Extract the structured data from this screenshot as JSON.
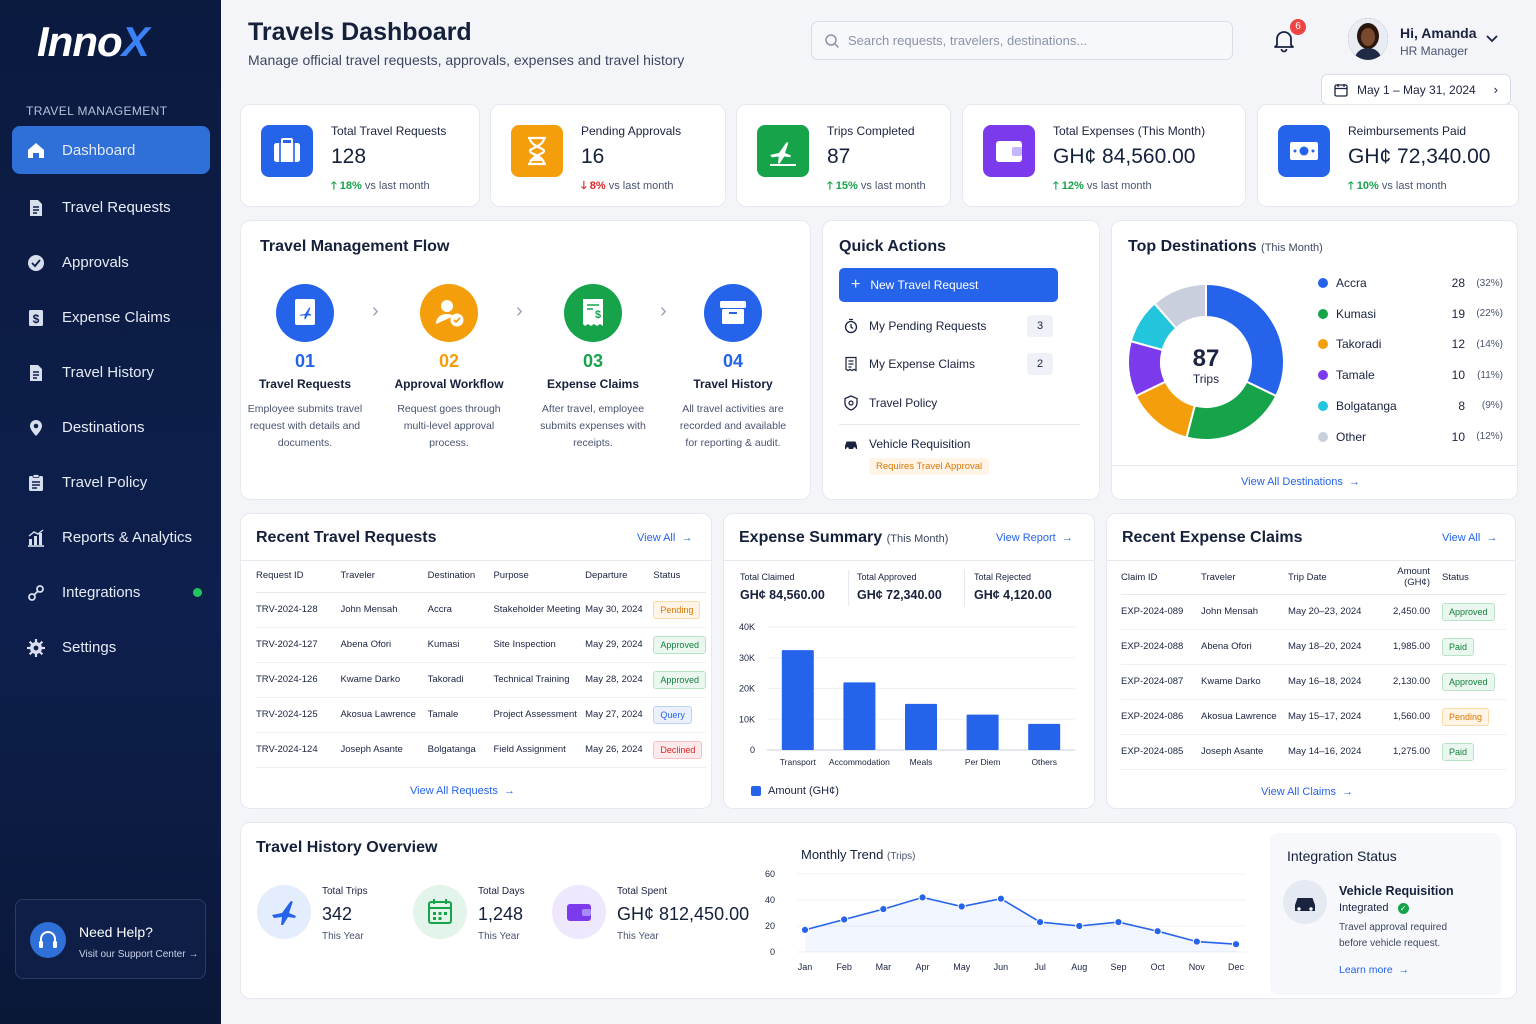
{
  "sidebar": {
    "logo_main": "Inno",
    "logo_x": "X",
    "section": "TRAVEL MANAGEMENT",
    "items": [
      {
        "label": "Dashboard",
        "icon": "home-icon"
      },
      {
        "label": "Travel Requests",
        "icon": "document-icon"
      },
      {
        "label": "Approvals",
        "icon": "check-badge-icon"
      },
      {
        "label": "Expense Claims",
        "icon": "dollar-doc-icon"
      },
      {
        "label": "Travel History",
        "icon": "history-doc-icon"
      },
      {
        "label": "Destinations",
        "icon": "map-pin-icon"
      },
      {
        "label": "Travel Policy",
        "icon": "clipboard-icon"
      },
      {
        "label": "Reports & Analytics",
        "icon": "analytics-icon"
      },
      {
        "label": "Integrations",
        "icon": "link-icon"
      },
      {
        "label": "Settings",
        "icon": "gear-icon"
      }
    ],
    "help_title": "Need Help?",
    "help_sub": "Visit our Support Center →"
  },
  "header": {
    "title": "Travels Dashboard",
    "subtitle": "Manage official travel requests, approvals, expenses and travel history",
    "search_placeholder": "Search requests, travelers, destinations...",
    "notification_count": "6",
    "user_name": "Hi, Amanda",
    "user_role": "HR Manager",
    "date_range": "May 1 – May 31, 2024"
  },
  "stats": [
    {
      "label": "Total Travel Requests",
      "value": "128",
      "delta": "18%",
      "delta_text": "vs last month",
      "dir": "up",
      "color": "#2563eb"
    },
    {
      "label": "Pending Approvals",
      "value": "16",
      "delta": "8%",
      "delta_text": "vs last month",
      "dir": "down",
      "color": "#f59e0b"
    },
    {
      "label": "Trips Completed",
      "value": "87",
      "delta": "15%",
      "delta_text": "vs last month",
      "dir": "up",
      "color": "#16a34a"
    },
    {
      "label": "Total Expenses (This Month)",
      "value": "GH¢  84,560.00",
      "delta": "12%",
      "delta_text": "vs last month",
      "dir": "up",
      "color": "#7c3aed"
    },
    {
      "label": "Reimbursements Paid",
      "value": "GH¢ 72,340.00",
      "delta": "10%",
      "delta_text": "vs last month",
      "dir": "up",
      "color": "#2563eb"
    }
  ],
  "flow": {
    "title": "Travel Management Flow",
    "steps": [
      {
        "num": "01",
        "name": "Travel Requests",
        "desc": "Employee submits travel request with details and documents.",
        "color": "#2563eb"
      },
      {
        "num": "02",
        "name": "Approval Workflow",
        "desc": "Request goes through multi-level approval process.",
        "color": "#f59e0b"
      },
      {
        "num": "03",
        "name": "Expense Claims",
        "desc": "After travel, employee submits expenses with receipts.",
        "color": "#16a34a"
      },
      {
        "num": "04",
        "name": "Travel History",
        "desc": "All travel activities are recorded and available for reporting & audit.",
        "color": "#2563eb"
      }
    ]
  },
  "quick": {
    "title": "Quick Actions",
    "new_request": "New Travel Request",
    "pending": "My Pending Requests",
    "pending_count": "3",
    "expense": "My Expense Claims",
    "expense_count": "2",
    "policy": "Travel Policy",
    "vehicle": "Vehicle Requisition",
    "vehicle_note": "Requires Travel Approval"
  },
  "destinations": {
    "title": "Top Destinations",
    "title_small": "(This Month)",
    "center_value": "87",
    "center_label": "Trips",
    "items": [
      {
        "name": "Accra",
        "value": "28",
        "pct": "(32%)",
        "color": "#2563eb"
      },
      {
        "name": "Kumasi",
        "value": "19",
        "pct": "(22%)",
        "color": "#16a34a"
      },
      {
        "name": "Takoradi",
        "value": "12",
        "pct": "(14%)",
        "color": "#f59e0b"
      },
      {
        "name": "Tamale",
        "value": "10",
        "pct": "(11%)",
        "color": "#7c3aed"
      },
      {
        "name": "Bolgatanga",
        "value": "8",
        "pct": "(9%)",
        "color": "#22c5dc"
      },
      {
        "name": "Other",
        "value": "10",
        "pct": "(12%)",
        "color": "#c9cfdc"
      }
    ],
    "link": "View All Destinations"
  },
  "recent_requests": {
    "title": "Recent Travel Requests",
    "view_all": "View All",
    "headers": [
      "Request ID",
      "Traveler",
      "Destination",
      "Purpose",
      "Departure",
      "Status"
    ],
    "rows": [
      [
        "TRV-2024-128",
        "John Mensah",
        "Accra",
        "Stakeholder Meeting",
        "May 30, 2024",
        "Pending"
      ],
      [
        "TRV-2024-127",
        "Abena Ofori",
        "Kumasi",
        "Site Inspection",
        "May 29, 2024",
        "Approved"
      ],
      [
        "TRV-2024-126",
        "Kwame Darko",
        "Takoradi",
        "Technical Training",
        "May 28, 2024",
        "Approved"
      ],
      [
        "TRV-2024-125",
        "Akosua Lawrence",
        "Tamale",
        "Project Assessment",
        "May 27, 2024",
        "Query"
      ],
      [
        "TRV-2024-124",
        "Joseph Asante",
        "Bolgatanga",
        "Field Assignment",
        "May 26, 2024",
        "Declined"
      ]
    ],
    "footer": "View All Requests"
  },
  "expense_summary": {
    "title": "Expense Summary",
    "title_small": "(This Month)",
    "link": "View Report",
    "totals": [
      {
        "label": "Total Claimed",
        "value": "GH¢ 84,560.00"
      },
      {
        "label": "Total Approved",
        "value": "GH¢ 72,340.00"
      },
      {
        "label": "Total Rejected",
        "value": "GH¢ 4,120.00"
      }
    ],
    "legend": "Amount (GH¢)"
  },
  "chart_data": [
    {
      "type": "bar",
      "categories": [
        "Transport",
        "Accommodation",
        "Meals",
        "Per Diem",
        "Others"
      ],
      "values": [
        32500,
        22000,
        15000,
        11500,
        8500
      ],
      "ylim": [
        0,
        40000
      ],
      "yticks": [
        "0",
        "10K",
        "20K",
        "30K",
        "40K"
      ],
      "series": [
        {
          "name": "Amount (GH¢)",
          "values": [
            32500,
            22000,
            15000,
            11500,
            8500
          ]
        }
      ],
      "color": "#2563eb"
    },
    {
      "type": "line",
      "title": "Monthly Trend",
      "title_small": "(Trips)",
      "categories": [
        "Jan",
        "Feb",
        "Mar",
        "Apr",
        "May",
        "Jun",
        "Jul",
        "Aug",
        "Sep",
        "Oct",
        "Nov",
        "Dec"
      ],
      "values": [
        17,
        25,
        33,
        42,
        35,
        41,
        23,
        20,
        23,
        16,
        8,
        6
      ],
      "ylim": [
        0,
        60
      ],
      "yticks": [
        "0",
        "20",
        "40",
        "60"
      ],
      "color": "#2563eb"
    },
    {
      "type": "pie",
      "categories": [
        "Accra",
        "Kumasi",
        "Takoradi",
        "Tamale",
        "Bolgatanga",
        "Other"
      ],
      "values": [
        28,
        19,
        12,
        10,
        8,
        10
      ]
    }
  ],
  "recent_claims": {
    "title": "Recent Expense Claims",
    "view_all": "View All",
    "headers": [
      "Claim ID",
      "Traveler",
      "Trip Date",
      "Amount (GH¢)",
      "Status"
    ],
    "rows": [
      [
        "EXP-2024-089",
        "John Mensah",
        "May 20–23, 2024",
        "2,450.00",
        "Approved"
      ],
      [
        "EXP-2024-088",
        "Abena Ofori",
        "May 18–20, 2024",
        "1,985.00",
        "Paid"
      ],
      [
        "EXP-2024-087",
        "Kwame Darko",
        "May 16–18, 2024",
        "2,130.00",
        "Approved"
      ],
      [
        "EXP-2024-086",
        "Akosua Lawrence",
        "May 15–17, 2024",
        "1,560.00",
        "Pending"
      ],
      [
        "EXP-2024-085",
        "Joseph Asante",
        "May 14–16, 2024",
        "1,275.00",
        "Paid"
      ]
    ],
    "footer": "View All Claims"
  },
  "history": {
    "title": "Travel History Overview",
    "items": [
      {
        "label": "Total Trips",
        "value": "342",
        "sub": "This Year"
      },
      {
        "label": "Total Days",
        "value": "1,248",
        "sub": "This Year"
      },
      {
        "label": "Total Spent",
        "value": "GH¢ 812,450.00",
        "sub": "This Year"
      }
    ]
  },
  "integration": {
    "title": "Integration Status",
    "name": "Vehicle Requisition",
    "status": "Integrated",
    "desc1": "Travel approval required",
    "desc2": "before vehicle request.",
    "link": "Learn more"
  }
}
